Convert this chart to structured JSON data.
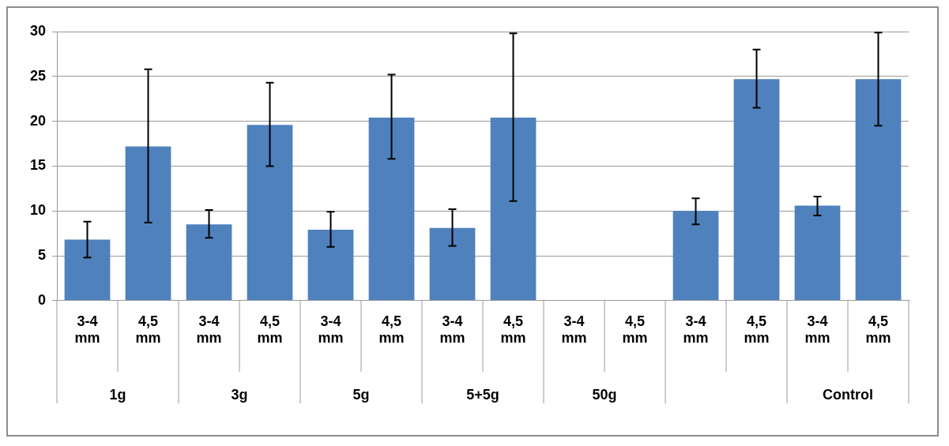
{
  "chart_data": {
    "type": "bar",
    "categories": [
      "3-4 mm",
      "4,5 mm",
      "3-4 mm",
      "4,5 mm",
      "3-4 mm",
      "4,5 mm",
      "3-4 mm",
      "4,5 mm",
      "3-4 mm",
      "4,5 mm",
      "3-4 mm",
      "4,5 mm",
      "3-4 mm",
      "4,5 mm"
    ],
    "values": [
      6.8,
      17.2,
      8.5,
      19.6,
      7.9,
      20.4,
      8.1,
      20.4,
      null,
      null,
      10.0,
      24.7,
      10.6,
      24.7
    ],
    "errors": [
      [
        4.8,
        8.8
      ],
      [
        8.7,
        25.8
      ],
      [
        7.0,
        10.1
      ],
      [
        15.0,
        24.3
      ],
      [
        6.0,
        9.9
      ],
      [
        15.8,
        25.2
      ],
      [
        6.1,
        10.2
      ],
      [
        11.1,
        29.8
      ],
      null,
      null,
      [
        8.5,
        11.4
      ],
      [
        21.5,
        28.0
      ],
      [
        9.5,
        11.6
      ],
      [
        19.5,
        29.9
      ]
    ],
    "color": "#4f81bd",
    "annotations": [
      "1g",
      "3g",
      "5g",
      "5+5g",
      "50g",
      null,
      "Control"
    ],
    "ylim": [
      0,
      30
    ],
    "yticks": [
      0,
      5,
      10,
      15,
      20,
      25,
      30
    ],
    "grid": "y",
    "legend": false
  }
}
